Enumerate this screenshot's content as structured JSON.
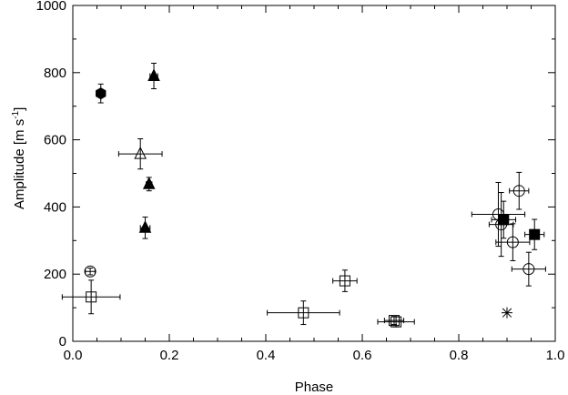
{
  "chart_data": {
    "type": "scatter",
    "title": "",
    "xlabel": "Phase",
    "ylabel": {
      "main": "Amplitude [m s",
      "exp": "-1",
      "close": "]"
    },
    "xlim": [
      0.0,
      1.0
    ],
    "ylim": [
      0,
      1000
    ],
    "xticks": [
      0.0,
      0.2,
      0.4,
      0.6,
      0.8,
      1.0
    ],
    "xtick_labels": [
      "0.0",
      "0.2",
      "0.4",
      "0.6",
      "0.8",
      "1.0"
    ],
    "yticks": [
      0,
      200,
      400,
      600,
      800,
      1000
    ],
    "ytick_labels": [
      "0",
      "200",
      "400",
      "600",
      "800",
      "1000"
    ],
    "grid": false,
    "series": [
      {
        "marker": "filled-hexagon",
        "points": [
          {
            "x": 0.058,
            "y": 738,
            "xerr": 0.006,
            "yerr": 28
          }
        ]
      },
      {
        "marker": "filled-triangle",
        "points": [
          {
            "x": 0.168,
            "y": 790,
            "xerr": 0.008,
            "yerr": 38
          },
          {
            "x": 0.158,
            "y": 468,
            "xerr": 0.006,
            "yerr": 20
          },
          {
            "x": 0.15,
            "y": 338,
            "xerr": 0.01,
            "yerr": 32
          }
        ]
      },
      {
        "marker": "open-triangle",
        "points": [
          {
            "x": 0.14,
            "y": 558,
            "xerr": 0.045,
            "yerr": 45
          }
        ]
      },
      {
        "marker": "open-circle",
        "points": [
          {
            "x": 0.036,
            "y": 208,
            "xerr": 0.01,
            "yerr": 10
          },
          {
            "x": 0.882,
            "y": 378,
            "xerr": 0.055,
            "yerr": 95
          },
          {
            "x": 0.888,
            "y": 348,
            "xerr": 0.025,
            "yerr": 95
          },
          {
            "x": 0.925,
            "y": 448,
            "xerr": 0.02,
            "yerr": 55
          },
          {
            "x": 0.912,
            "y": 295,
            "xerr": 0.035,
            "yerr": 55
          },
          {
            "x": 0.945,
            "y": 215,
            "xerr": 0.035,
            "yerr": 50
          }
        ]
      },
      {
        "marker": "open-square",
        "points": [
          {
            "x": 0.038,
            "y": 132,
            "xerr": 0.06,
            "yerr": 50
          },
          {
            "x": 0.478,
            "y": 85,
            "xerr": 0.075,
            "yerr": 35
          },
          {
            "x": 0.564,
            "y": 180,
            "xerr": 0.025,
            "yerr": 32
          },
          {
            "x": 0.67,
            "y": 58,
            "xerr": 0.038,
            "yerr": 15
          },
          {
            "x": 0.666,
            "y": 62,
            "xerr": 0.02,
            "yerr": 12
          }
        ]
      },
      {
        "marker": "filled-square",
        "points": [
          {
            "x": 0.893,
            "y": 362,
            "xerr": 0.025,
            "yerr": 55
          },
          {
            "x": 0.957,
            "y": 318,
            "xerr": 0.02,
            "yerr": 45
          }
        ]
      },
      {
        "marker": "asterisk",
        "points": [
          {
            "x": 0.9,
            "y": 85,
            "xerr": 0.0,
            "yerr": 0
          }
        ]
      }
    ]
  }
}
